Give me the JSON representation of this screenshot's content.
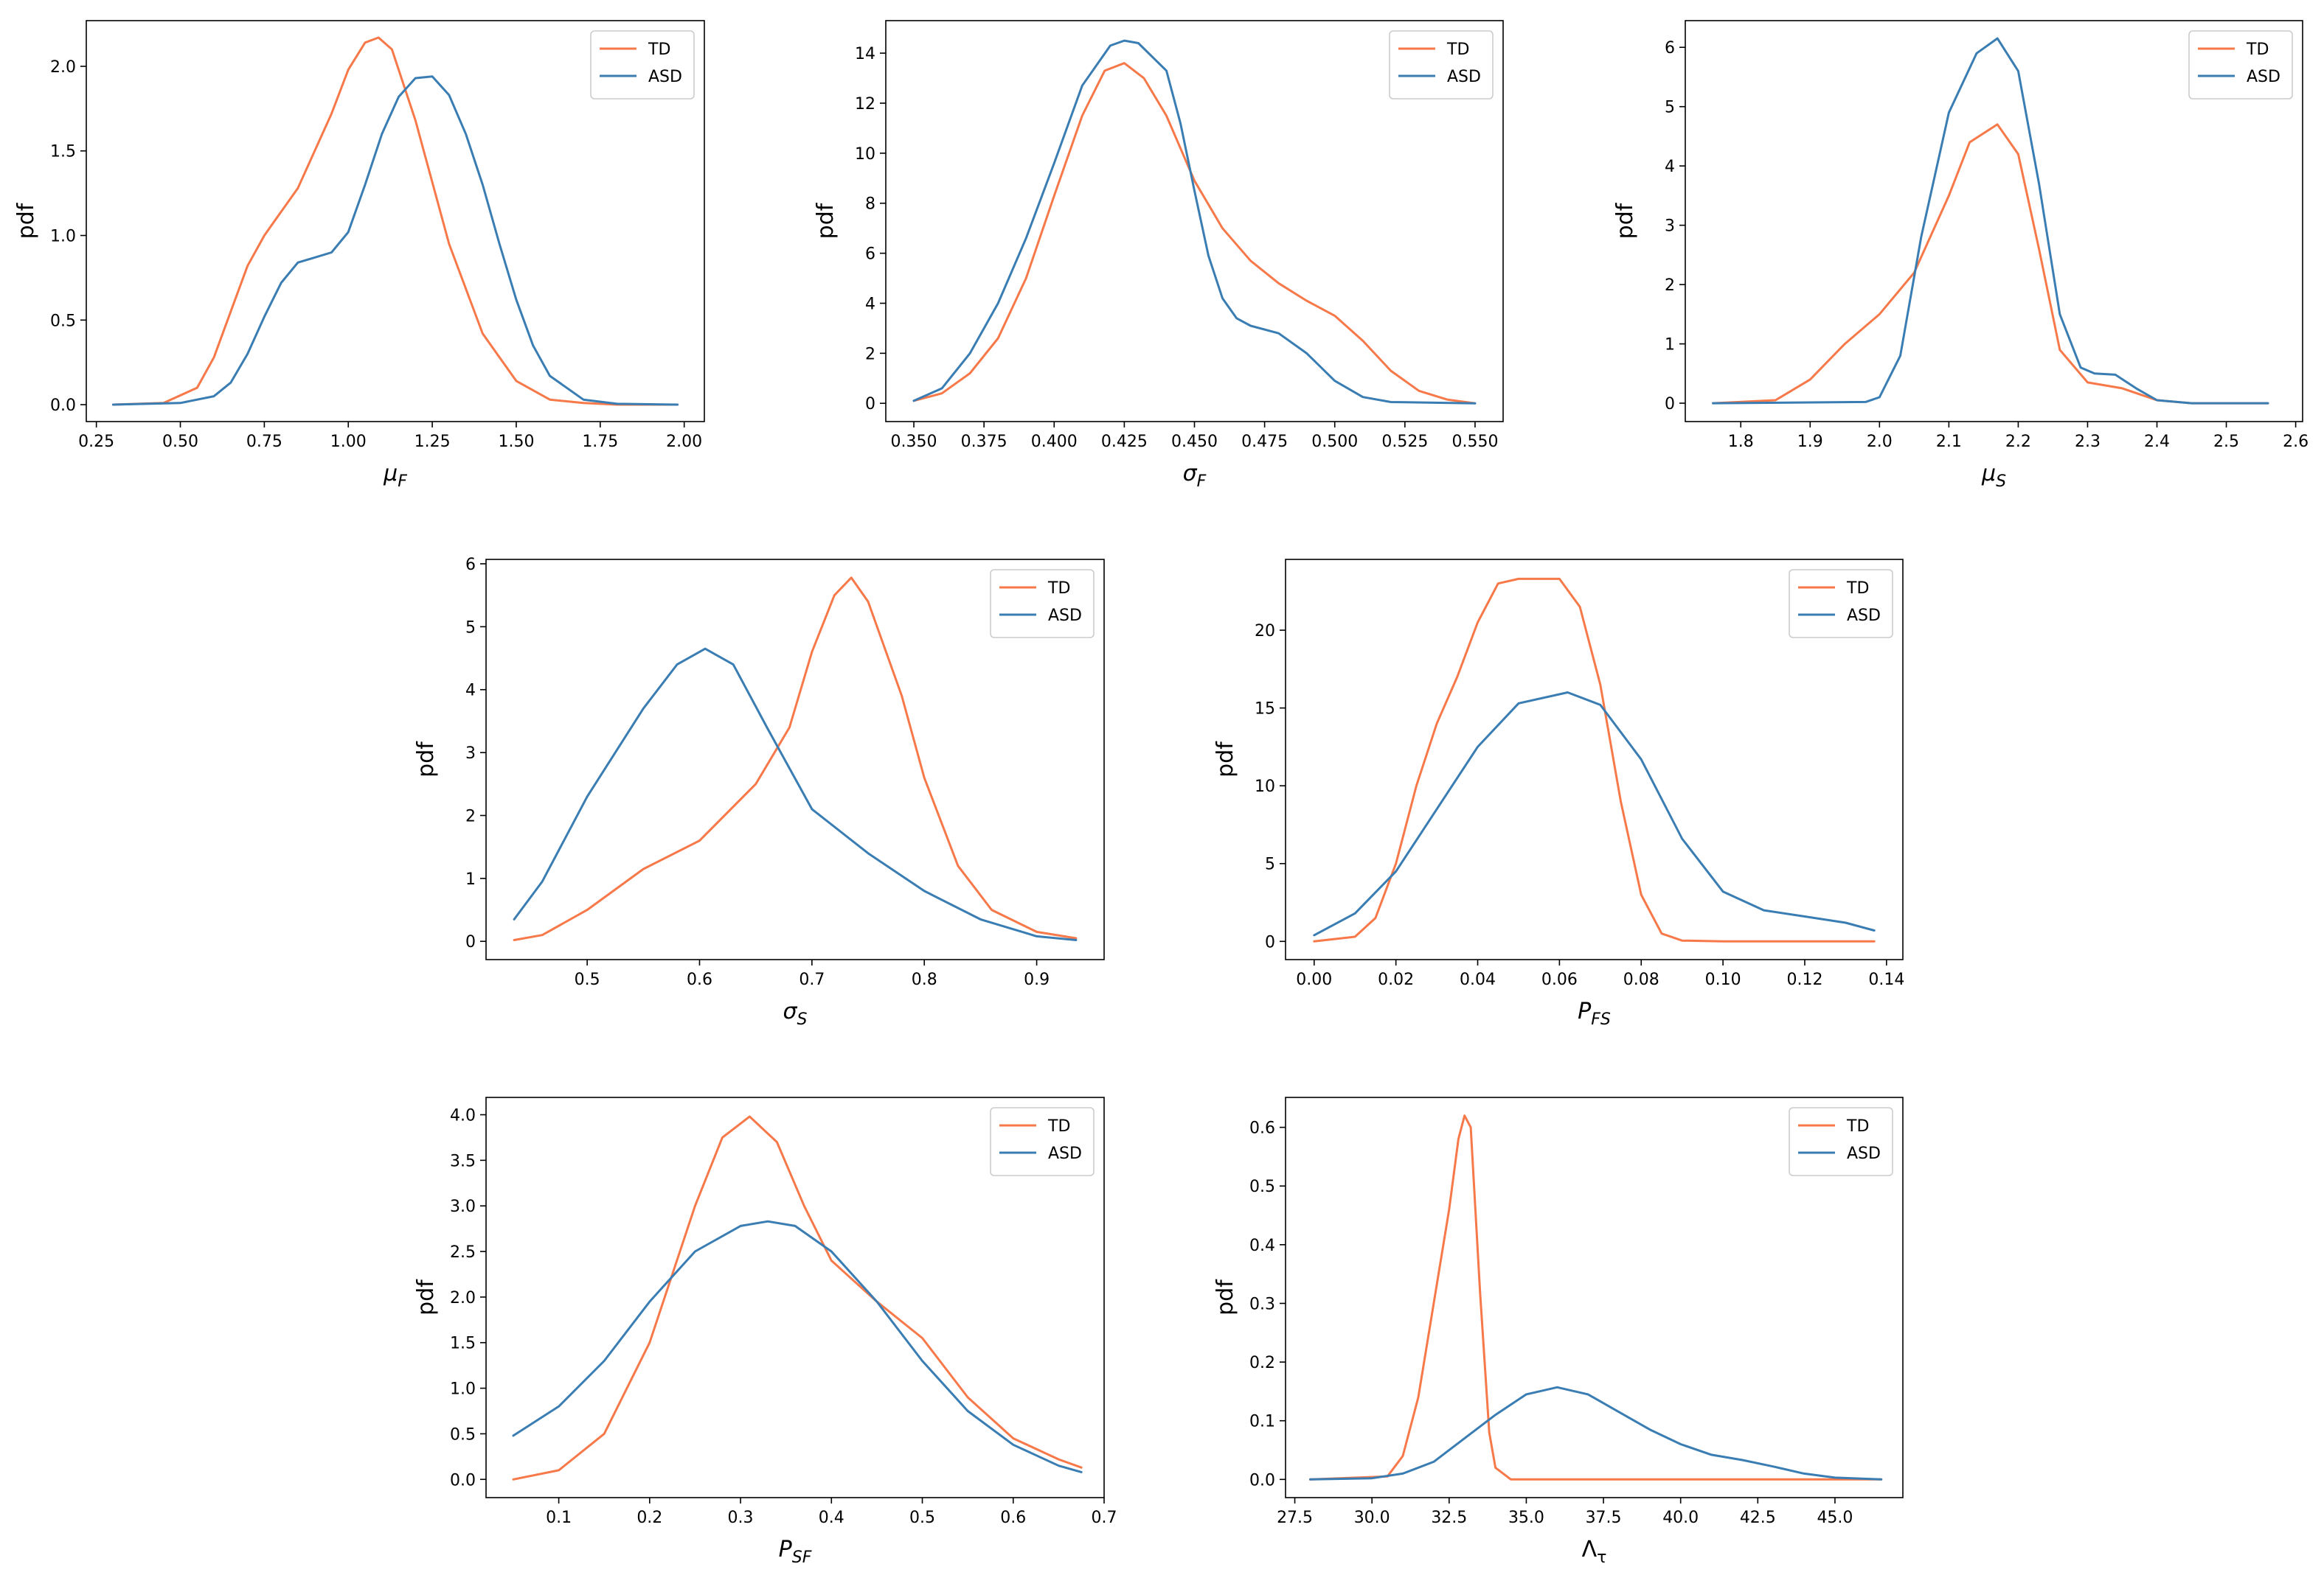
{
  "figure": {
    "title": ""
  },
  "colors": {
    "TD": "#f7794a",
    "ASD": "#3a7db3"
  },
  "chart_data": [
    {
      "type": "line",
      "xlabel": "μF",
      "xlabel_main": "μ",
      "xlabel_sub": "F",
      "xlabel_italic": true,
      "ylabel": "pdf",
      "xlim": [
        0.22,
        2.06
      ],
      "ylim": [
        -0.1,
        2.27
      ],
      "xticks": [
        0.25,
        0.5,
        0.75,
        1.0,
        1.25,
        1.5,
        1.75,
        2.0
      ],
      "xtick_labels": [
        "0.25",
        "0.50",
        "0.75",
        "1.00",
        "1.25",
        "1.50",
        "1.75",
        "2.00"
      ],
      "yticks": [
        0.0,
        0.5,
        1.0,
        1.5,
        2.0
      ],
      "ytick_labels": [
        "0.0",
        "0.5",
        "1.0",
        "1.5",
        "2.0"
      ],
      "legend": [
        "TD",
        "ASD"
      ],
      "legend_loc": "top-right",
      "series": [
        {
          "name": "TD",
          "x": [
            0.3,
            0.45,
            0.55,
            0.6,
            0.65,
            0.7,
            0.75,
            0.85,
            0.95,
            1.0,
            1.05,
            1.09,
            1.13,
            1.2,
            1.3,
            1.4,
            1.5,
            1.6,
            1.7,
            1.8,
            1.98
          ],
          "y": [
            0.0,
            0.01,
            0.1,
            0.28,
            0.55,
            0.82,
            1.0,
            1.28,
            1.72,
            1.98,
            2.14,
            2.17,
            2.1,
            1.68,
            0.95,
            0.42,
            0.14,
            0.03,
            0.01,
            0.0,
            0.0
          ]
        },
        {
          "name": "ASD",
          "x": [
            0.3,
            0.5,
            0.6,
            0.65,
            0.7,
            0.75,
            0.8,
            0.85,
            0.9,
            0.95,
            1.0,
            1.05,
            1.1,
            1.15,
            1.2,
            1.25,
            1.3,
            1.35,
            1.4,
            1.45,
            1.5,
            1.55,
            1.6,
            1.7,
            1.8,
            1.98
          ],
          "y": [
            0.0,
            0.01,
            0.05,
            0.13,
            0.3,
            0.52,
            0.72,
            0.84,
            0.87,
            0.9,
            1.02,
            1.3,
            1.6,
            1.82,
            1.93,
            1.94,
            1.83,
            1.6,
            1.3,
            0.95,
            0.62,
            0.35,
            0.17,
            0.03,
            0.005,
            0.0
          ]
        }
      ]
    },
    {
      "type": "line",
      "xlabel": "σF",
      "xlabel_main": "σ",
      "xlabel_sub": "F",
      "xlabel_italic": true,
      "ylabel": "pdf",
      "xlim": [
        0.34,
        0.56
      ],
      "ylim": [
        -0.73,
        15.3
      ],
      "xticks": [
        0.35,
        0.375,
        0.4,
        0.425,
        0.45,
        0.475,
        0.5,
        0.525,
        0.55
      ],
      "xtick_labels": [
        "0.350",
        "0.375",
        "0.400",
        "0.425",
        "0.450",
        "0.475",
        "0.500",
        "0.525",
        "0.550"
      ],
      "yticks": [
        0,
        2,
        4,
        6,
        8,
        10,
        12,
        14
      ],
      "ytick_labels": [
        "0",
        "2",
        "4",
        "6",
        "8",
        "10",
        "12",
        "14"
      ],
      "legend": [
        "TD",
        "ASD"
      ],
      "legend_loc": "top-right",
      "series": [
        {
          "name": "TD",
          "x": [
            0.35,
            0.36,
            0.37,
            0.38,
            0.39,
            0.4,
            0.41,
            0.418,
            0.425,
            0.432,
            0.44,
            0.45,
            0.46,
            0.47,
            0.48,
            0.49,
            0.5,
            0.51,
            0.52,
            0.53,
            0.54,
            0.55
          ],
          "y": [
            0.1,
            0.4,
            1.2,
            2.6,
            5.0,
            8.3,
            11.5,
            13.3,
            13.6,
            13.0,
            11.5,
            8.9,
            7.0,
            5.7,
            4.8,
            4.1,
            3.5,
            2.5,
            1.3,
            0.5,
            0.15,
            0.0
          ]
        },
        {
          "name": "ASD",
          "x": [
            0.35,
            0.36,
            0.37,
            0.38,
            0.39,
            0.4,
            0.41,
            0.42,
            0.425,
            0.43,
            0.44,
            0.445,
            0.45,
            0.455,
            0.46,
            0.465,
            0.47,
            0.48,
            0.49,
            0.5,
            0.51,
            0.52,
            0.55
          ],
          "y": [
            0.1,
            0.6,
            2.0,
            4.0,
            6.6,
            9.6,
            12.7,
            14.3,
            14.5,
            14.4,
            13.3,
            11.2,
            8.5,
            5.9,
            4.2,
            3.4,
            3.1,
            2.8,
            2.0,
            0.9,
            0.25,
            0.05,
            0.0
          ]
        }
      ]
    },
    {
      "type": "line",
      "xlabel": "μS",
      "xlabel_main": "μ",
      "xlabel_sub": "S",
      "xlabel_italic": true,
      "ylabel": "pdf",
      "xlim": [
        1.72,
        2.61
      ],
      "ylim": [
        -0.31,
        6.45
      ],
      "xticks": [
        1.8,
        1.9,
        2.0,
        2.1,
        2.2,
        2.3,
        2.4,
        2.5,
        2.6
      ],
      "xtick_labels": [
        "1.8",
        "1.9",
        "2.0",
        "2.1",
        "2.2",
        "2.3",
        "2.4",
        "2.5",
        "2.6"
      ],
      "yticks": [
        0,
        1,
        2,
        3,
        4,
        5,
        6
      ],
      "ytick_labels": [
        "0",
        "1",
        "2",
        "3",
        "4",
        "5",
        "6"
      ],
      "legend": [
        "TD",
        "ASD"
      ],
      "legend_loc": "top-right",
      "series": [
        {
          "name": "TD",
          "x": [
            1.76,
            1.85,
            1.9,
            1.95,
            2.0,
            2.05,
            2.1,
            2.13,
            2.17,
            2.2,
            2.23,
            2.26,
            2.3,
            2.35,
            2.4,
            2.45,
            2.56
          ],
          "y": [
            0.0,
            0.05,
            0.4,
            1.0,
            1.5,
            2.2,
            3.5,
            4.4,
            4.7,
            4.2,
            2.6,
            0.9,
            0.35,
            0.25,
            0.05,
            0.0,
            0.0
          ]
        },
        {
          "name": "ASD",
          "x": [
            1.76,
            1.98,
            2.0,
            2.03,
            2.06,
            2.1,
            2.14,
            2.17,
            2.2,
            2.23,
            2.26,
            2.29,
            2.31,
            2.34,
            2.37,
            2.4,
            2.45,
            2.56
          ],
          "y": [
            0.0,
            0.02,
            0.1,
            0.8,
            2.8,
            4.9,
            5.9,
            6.15,
            5.6,
            3.7,
            1.5,
            0.6,
            0.5,
            0.48,
            0.25,
            0.05,
            0.0,
            0.0
          ]
        }
      ]
    },
    {
      "type": "line",
      "xlabel": "σS",
      "xlabel_main": "σ",
      "xlabel_sub": "S",
      "xlabel_italic": true,
      "ylabel": "pdf",
      "xlim": [
        0.41,
        0.96
      ],
      "ylim": [
        -0.29,
        6.07
      ],
      "xticks": [
        0.5,
        0.6,
        0.7,
        0.8,
        0.9
      ],
      "xtick_labels": [
        "0.5",
        "0.6",
        "0.7",
        "0.8",
        "0.9"
      ],
      "yticks": [
        0,
        1,
        2,
        3,
        4,
        5,
        6
      ],
      "ytick_labels": [
        "0",
        "1",
        "2",
        "3",
        "4",
        "5",
        "6"
      ],
      "legend": [
        "TD",
        "ASD"
      ],
      "legend_loc": "top-right",
      "series": [
        {
          "name": "TD",
          "x": [
            0.435,
            0.46,
            0.5,
            0.55,
            0.6,
            0.65,
            0.68,
            0.7,
            0.72,
            0.735,
            0.75,
            0.78,
            0.8,
            0.83,
            0.86,
            0.9,
            0.935
          ],
          "y": [
            0.02,
            0.1,
            0.5,
            1.15,
            1.6,
            2.5,
            3.4,
            4.6,
            5.5,
            5.78,
            5.4,
            3.9,
            2.6,
            1.2,
            0.5,
            0.15,
            0.05
          ]
        },
        {
          "name": "ASD",
          "x": [
            0.435,
            0.46,
            0.5,
            0.55,
            0.58,
            0.605,
            0.63,
            0.66,
            0.7,
            0.75,
            0.8,
            0.85,
            0.9,
            0.935
          ],
          "y": [
            0.35,
            0.95,
            2.3,
            3.7,
            4.4,
            4.65,
            4.4,
            3.4,
            2.1,
            1.4,
            0.8,
            0.35,
            0.08,
            0.02
          ]
        }
      ]
    },
    {
      "type": "line",
      "xlabel": "PFS",
      "xlabel_main": "P",
      "xlabel_sub": "FS",
      "xlabel_italic": true,
      "ylabel": "pdf",
      "xlim": [
        -0.007,
        0.144
      ],
      "ylim": [
        -1.17,
        24.55
      ],
      "xticks": [
        0.0,
        0.02,
        0.04,
        0.06,
        0.08,
        0.1,
        0.12,
        0.14
      ],
      "xtick_labels": [
        "0.00",
        "0.02",
        "0.04",
        "0.06",
        "0.08",
        "0.10",
        "0.12",
        "0.14"
      ],
      "yticks": [
        0,
        5,
        10,
        15,
        20
      ],
      "ytick_labels": [
        "0",
        "5",
        "10",
        "15",
        "20"
      ],
      "legend": [
        "TD",
        "ASD"
      ],
      "legend_loc": "top-right",
      "series": [
        {
          "name": "TD",
          "x": [
            0.0,
            0.01,
            0.015,
            0.02,
            0.025,
            0.03,
            0.035,
            0.04,
            0.045,
            0.05,
            0.055,
            0.06,
            0.065,
            0.07,
            0.075,
            0.08,
            0.085,
            0.09,
            0.1,
            0.137
          ],
          "y": [
            0.0,
            0.3,
            1.5,
            5.0,
            10.0,
            14.0,
            17.0,
            20.5,
            23.0,
            23.3,
            23.3,
            23.3,
            21.5,
            16.5,
            9.0,
            3.0,
            0.5,
            0.05,
            0.0,
            0.0
          ]
        },
        {
          "name": "ASD",
          "x": [
            0.0,
            0.01,
            0.02,
            0.03,
            0.04,
            0.05,
            0.062,
            0.07,
            0.08,
            0.09,
            0.1,
            0.11,
            0.12,
            0.13,
            0.137
          ],
          "y": [
            0.4,
            1.8,
            4.5,
            8.5,
            12.5,
            15.3,
            16.0,
            15.2,
            11.7,
            6.6,
            3.2,
            2.0,
            1.6,
            1.2,
            0.7
          ]
        }
      ]
    },
    {
      "type": "line",
      "xlabel": "PSF",
      "xlabel_main": "P",
      "xlabel_sub": "SF",
      "xlabel_italic": true,
      "ylabel": "pdf",
      "xlim": [
        0.02,
        0.7
      ],
      "ylim": [
        -0.2,
        4.19
      ],
      "xticks": [
        0.1,
        0.2,
        0.3,
        0.4,
        0.5,
        0.6,
        0.7
      ],
      "xtick_labels": [
        "0.1",
        "0.2",
        "0.3",
        "0.4",
        "0.5",
        "0.6",
        "0.7"
      ],
      "yticks": [
        0.0,
        0.5,
        1.0,
        1.5,
        2.0,
        2.5,
        3.0,
        3.5,
        4.0
      ],
      "ytick_labels": [
        "0.0",
        "0.5",
        "1.0",
        "1.5",
        "2.0",
        "2.5",
        "3.0",
        "3.5",
        "4.0"
      ],
      "legend": [
        "TD",
        "ASD"
      ],
      "legend_loc": "top-right",
      "series": [
        {
          "name": "TD",
          "x": [
            0.05,
            0.1,
            0.15,
            0.2,
            0.25,
            0.28,
            0.31,
            0.34,
            0.37,
            0.4,
            0.45,
            0.5,
            0.55,
            0.6,
            0.65,
            0.675
          ],
          "y": [
            0.0,
            0.1,
            0.5,
            1.5,
            3.0,
            3.75,
            3.98,
            3.7,
            3.0,
            2.4,
            1.95,
            1.55,
            0.9,
            0.45,
            0.22,
            0.13
          ]
        },
        {
          "name": "ASD",
          "x": [
            0.05,
            0.1,
            0.15,
            0.2,
            0.25,
            0.3,
            0.33,
            0.36,
            0.4,
            0.45,
            0.5,
            0.55,
            0.6,
            0.65,
            0.675
          ],
          "y": [
            0.48,
            0.8,
            1.3,
            1.95,
            2.5,
            2.78,
            2.83,
            2.78,
            2.5,
            1.95,
            1.3,
            0.75,
            0.38,
            0.15,
            0.08
          ]
        }
      ]
    },
    {
      "type": "line",
      "xlabel": "Λτ",
      "xlabel_main": "Λ",
      "xlabel_sub": "τ",
      "xlabel_italic": false,
      "ylabel": "pdf",
      "xlim": [
        27.2,
        47.2
      ],
      "ylim": [
        -0.031,
        0.651
      ],
      "xticks": [
        27.5,
        30.0,
        32.5,
        35.0,
        37.5,
        40.0,
        42.5,
        45.0
      ],
      "xtick_labels": [
        "27.5",
        "30.0",
        "32.5",
        "35.0",
        "37.5",
        "40.0",
        "42.5",
        "45.0"
      ],
      "yticks": [
        0.0,
        0.1,
        0.2,
        0.3,
        0.4,
        0.5,
        0.6
      ],
      "ytick_labels": [
        "0.0",
        "0.1",
        "0.2",
        "0.3",
        "0.4",
        "0.5",
        "0.6"
      ],
      "legend": [
        "TD",
        "ASD"
      ],
      "legend_loc": "top-right",
      "series": [
        {
          "name": "TD",
          "x": [
            28.0,
            30.5,
            31.0,
            31.5,
            32.0,
            32.5,
            32.8,
            33.0,
            33.2,
            33.5,
            33.8,
            34.0,
            34.5,
            46.5
          ],
          "y": [
            0.0,
            0.005,
            0.04,
            0.14,
            0.3,
            0.46,
            0.58,
            0.62,
            0.6,
            0.32,
            0.08,
            0.02,
            0.0,
            0.0
          ]
        },
        {
          "name": "ASD",
          "x": [
            28.0,
            30.0,
            31.0,
            32.0,
            33.0,
            34.0,
            35.0,
            36.0,
            37.0,
            38.0,
            39.0,
            40.0,
            41.0,
            42.0,
            43.0,
            44.0,
            45.0,
            46.5
          ],
          "y": [
            0.0,
            0.002,
            0.01,
            0.03,
            0.07,
            0.11,
            0.145,
            0.157,
            0.145,
            0.115,
            0.085,
            0.06,
            0.042,
            0.033,
            0.022,
            0.01,
            0.003,
            0.0
          ]
        }
      ]
    }
  ]
}
